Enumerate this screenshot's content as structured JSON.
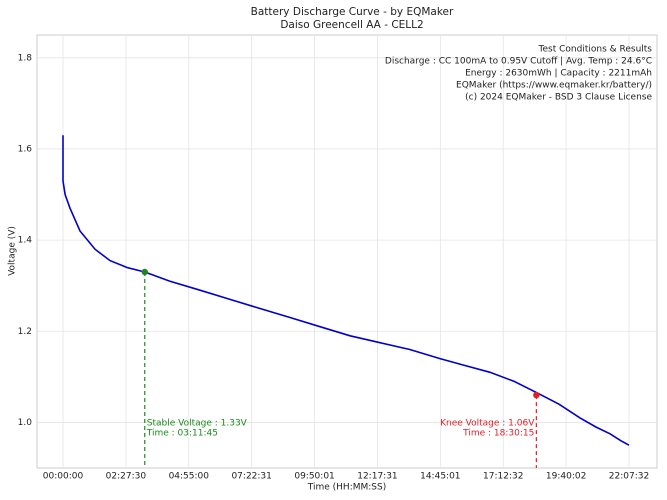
{
  "chart_data": {
    "type": "line",
    "title": "Battery Discharge Curve - by EQMaker",
    "subtitle": "Daiso Greencell AA - CELL2",
    "x_label": "Time (HH:MM:SS)",
    "y_label": "Voltage (V)",
    "color": "#0000cc",
    "x": [
      0,
      1,
      300,
      985,
      2392,
      4503,
      6614,
      9000,
      11505,
      15000,
      19280,
      23500,
      27723,
      32000,
      36167,
      40400,
      44610,
      48800,
      53054,
      56500,
      60090,
      63500,
      66705,
      69800,
      72757,
      75000,
      76979,
      78500,
      79652
    ],
    "values": [
      1.63,
      1.53,
      1.5,
      1.47,
      1.42,
      1.38,
      1.355,
      1.34,
      1.33,
      1.31,
      1.29,
      1.27,
      1.25,
      1.23,
      1.21,
      1.19,
      1.175,
      1.16,
      1.14,
      1.125,
      1.11,
      1.09,
      1.065,
      1.04,
      1.01,
      0.99,
      0.975,
      0.96,
      0.95
    ],
    "xlim": [
      -3659,
      83592
    ],
    "ylim": [
      0.9,
      1.85
    ],
    "xticks": [
      {
        "value": 0,
        "label": "00:00:00"
      },
      {
        "value": 8850,
        "label": "02:27:30"
      },
      {
        "value": 17700,
        "label": "04:55:00"
      },
      {
        "value": 26551,
        "label": "07:22:31"
      },
      {
        "value": 35401,
        "label": "09:50:01"
      },
      {
        "value": 44251,
        "label": "12:17:31"
      },
      {
        "value": 53101,
        "label": "14:45:01"
      },
      {
        "value": 61952,
        "label": "17:12:32"
      },
      {
        "value": 70802,
        "label": "19:40:02"
      },
      {
        "value": 79652,
        "label": "22:07:32"
      }
    ],
    "yticks": [
      {
        "value": 1.0,
        "label": "1.0"
      },
      1.2,
      1.4,
      1.6,
      {
        "value": 1.8,
        "label": "1.8"
      }
    ],
    "grid": true,
    "annotations": [
      {
        "x": 11505,
        "y": 1.33,
        "color": "#1a8a1a",
        "align": "left",
        "label": [
          "Stable Voltage : 1.33V",
          "Time : 03:11:45"
        ]
      },
      {
        "x": 66615,
        "y": 1.06,
        "color": "#e0202a",
        "align": "right",
        "label": [
          "Knee Voltage : 1.06V",
          "Time : 18:30:15"
        ]
      }
    ],
    "info": [
      "Test Conditions & Results",
      "Discharge : CC 100mA to 0.95V Cutoff | Avg. Temp : 24.6°C",
      "Energy : 2630mWh | Capacity : 2211mAh",
      "EQMaker (https://www.eqmaker.kr/battery/)",
      "(c) 2024 EQMaker - BSD 3 Clause License"
    ]
  }
}
